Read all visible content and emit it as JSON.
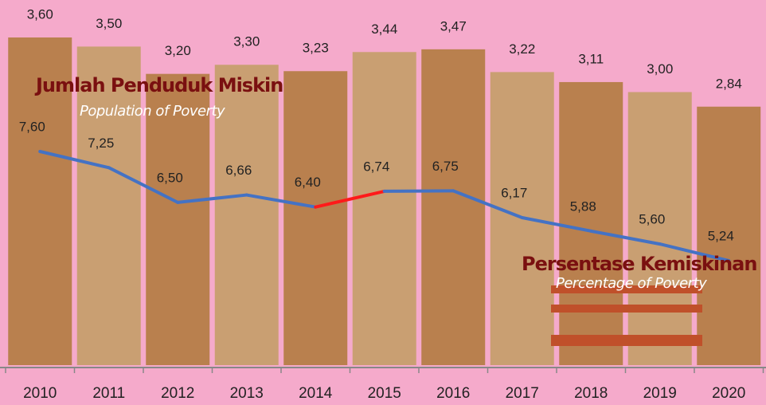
{
  "chart_data": {
    "type": "bar-line",
    "categories": [
      "2010",
      "2011",
      "2012",
      "2013",
      "2014",
      "2015",
      "2016",
      "2017",
      "2018",
      "2019",
      "2020"
    ],
    "annotations": [
      {
        "title": "Jumlah Penduduk Miskin",
        "subtitle": "Population of Poverty"
      },
      {
        "title": "Persentase Kemiskinan",
        "subtitle": "Percentage of Poverty"
      }
    ],
    "series": [
      {
        "name": "Jumlah Penduduk Miskin",
        "type": "bar",
        "colors": [
          "#b9804e",
          "#c99f72"
        ],
        "values": [
          3.6,
          3.5,
          3.2,
          3.3,
          3.23,
          3.44,
          3.47,
          3.22,
          3.11,
          3.0,
          2.84
        ],
        "value_labels": [
          "3,60",
          "3,50",
          "3,20",
          "3,30",
          "3,23",
          "3,44",
          "3,47",
          "3,22",
          "3,11",
          "3,00",
          "2,84"
        ]
      },
      {
        "name": "Persentase Kemiskinan",
        "type": "line",
        "color": "#4472c4",
        "highlight_segment": 4,
        "highlight_color": "#ff1a1a",
        "values": [
          7.6,
          7.25,
          6.5,
          6.66,
          6.4,
          6.74,
          6.75,
          6.17,
          5.88,
          5.6,
          5.24
        ],
        "value_labels": [
          "7,60",
          "7,25",
          "6,50",
          "6,66",
          "6,40",
          "6,74",
          "6,75",
          "6,17",
          "5,88",
          "5,60",
          "5,24"
        ]
      }
    ]
  }
}
